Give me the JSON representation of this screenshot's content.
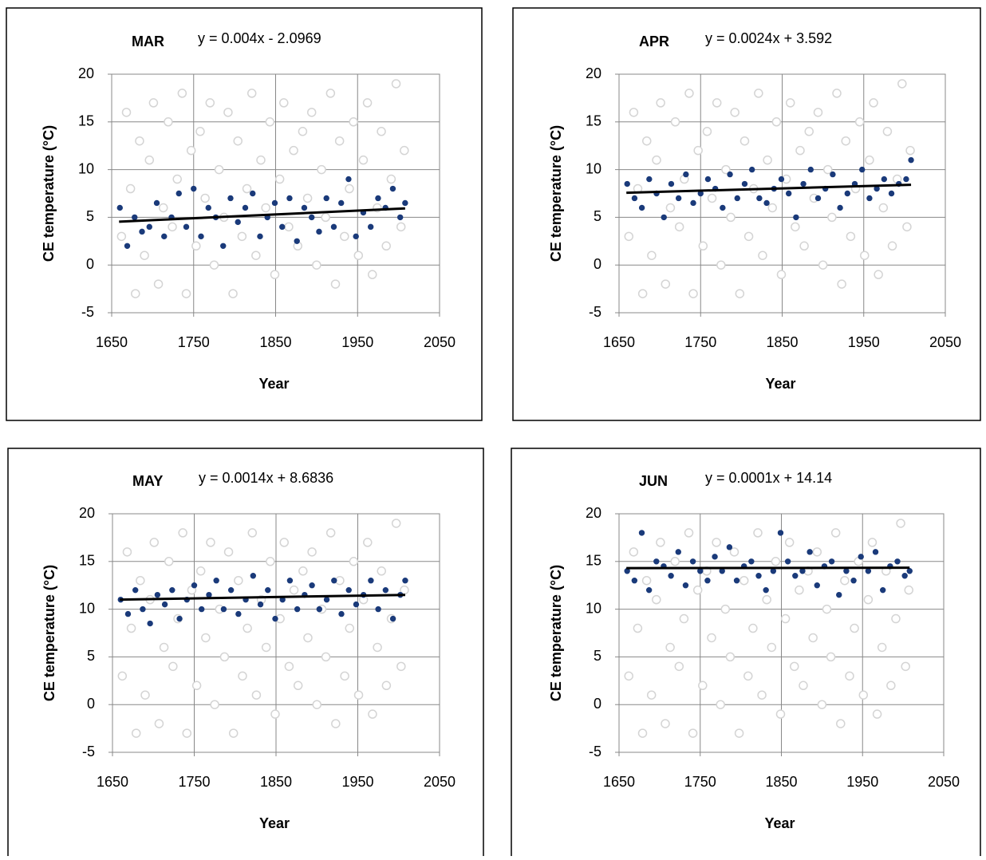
{
  "chart_data": [
    {
      "type": "scatter",
      "title": "MAR",
      "equation": "y = 0.004x - 2.0969",
      "xlabel": "Year",
      "ylabel": "CE temperature (°C)",
      "xlim": [
        1650,
        2050
      ],
      "ylim": [
        -5,
        20
      ],
      "xticks": [
        1650,
        1750,
        1850,
        1950,
        2050
      ],
      "yticks": [
        -5,
        0,
        5,
        10,
        15,
        20
      ],
      "grid": true,
      "series": [
        {
          "marker": "open",
          "color": "#d4d4d4",
          "x": [
            1662,
            1668,
            1673,
            1679,
            1684,
            1690,
            1696,
            1701,
            1707,
            1713,
            1719,
            1724,
            1730,
            1736,
            1741,
            1747,
            1753,
            1758,
            1764,
            1770,
            1775,
            1781,
            1787,
            1792,
            1798,
            1804,
            1809,
            1815,
            1821,
            1826,
            1832,
            1838,
            1843,
            1849,
            1855,
            1860,
            1866,
            1872,
            1877,
            1883,
            1889,
            1894,
            1900,
            1906,
            1911,
            1917,
            1923,
            1928,
            1934,
            1940,
            1945,
            1951,
            1957,
            1962,
            1968,
            1974,
            1979,
            1985,
            1991,
            1997,
            2003,
            2007
          ],
          "values": [
            3,
            16,
            8,
            -3,
            13,
            1,
            11,
            17,
            -2,
            6,
            15,
            4,
            9,
            18,
            -3,
            12,
            2,
            14,
            7,
            17,
            0,
            10,
            5,
            16,
            -3,
            13,
            3,
            8,
            18,
            1,
            11,
            6,
            15,
            -1,
            9,
            17,
            4,
            12,
            2,
            14,
            7,
            16,
            0,
            10,
            5,
            18,
            -2,
            13,
            3,
            8,
            15,
            1,
            11,
            17,
            -1,
            6,
            14,
            2,
            9,
            19,
            4,
            12
          ]
        },
        {
          "marker": "filled",
          "color": "#1a3a7a",
          "x": [
            1660,
            1669,
            1678,
            1687,
            1696,
            1705,
            1714,
            1723,
            1732,
            1741,
            1750,
            1759,
            1768,
            1777,
            1786,
            1795,
            1804,
            1813,
            1822,
            1831,
            1840,
            1849,
            1858,
            1867,
            1876,
            1885,
            1894,
            1903,
            1912,
            1921,
            1930,
            1939,
            1948,
            1957,
            1966,
            1975,
            1984,
            1993,
            2002,
            2008
          ],
          "values": [
            6,
            2,
            5,
            3.5,
            4,
            6.5,
            3,
            5,
            7.5,
            4,
            8,
            3,
            6,
            5,
            2,
            7,
            4.5,
            6,
            7.5,
            3,
            5,
            6.5,
            4,
            7,
            2.5,
            6,
            5,
            3.5,
            7,
            4,
            6.5,
            9,
            3,
            5.5,
            4,
            7,
            6,
            8,
            5,
            6.5
          ]
        },
        {
          "type": "line",
          "color": "#000000",
          "x": [
            1659,
            2008
          ],
          "values": [
            4.539,
            5.935
          ]
        }
      ]
    },
    {
      "type": "scatter",
      "title": "APR",
      "equation": "y = 0.0024x + 3.592",
      "xlabel": "Year",
      "ylabel": "CE temperature (°C)",
      "xlim": [
        1650,
        2050
      ],
      "ylim": [
        -5,
        20
      ],
      "xticks": [
        1650,
        1750,
        1850,
        1950,
        2050
      ],
      "yticks": [
        -5,
        0,
        5,
        10,
        15,
        20
      ],
      "grid": true,
      "series": [
        {
          "marker": "open",
          "color": "#d4d4d4",
          "x": [
            1662,
            1668,
            1673,
            1679,
            1684,
            1690,
            1696,
            1701,
            1707,
            1713,
            1719,
            1724,
            1730,
            1736,
            1741,
            1747,
            1753,
            1758,
            1764,
            1770,
            1775,
            1781,
            1787,
            1792,
            1798,
            1804,
            1809,
            1815,
            1821,
            1826,
            1832,
            1838,
            1843,
            1849,
            1855,
            1860,
            1866,
            1872,
            1877,
            1883,
            1889,
            1894,
            1900,
            1906,
            1911,
            1917,
            1923,
            1928,
            1934,
            1940,
            1945,
            1951,
            1957,
            1962,
            1968,
            1974,
            1979,
            1985,
            1991,
            1997,
            2003,
            2007
          ],
          "values": [
            3,
            16,
            8,
            -3,
            13,
            1,
            11,
            17,
            -2,
            6,
            15,
            4,
            9,
            18,
            -3,
            12,
            2,
            14,
            7,
            17,
            0,
            10,
            5,
            16,
            -3,
            13,
            3,
            8,
            18,
            1,
            11,
            6,
            15,
            -1,
            9,
            17,
            4,
            12,
            2,
            14,
            7,
            16,
            0,
            10,
            5,
            18,
            -2,
            13,
            3,
            8,
            15,
            1,
            11,
            17,
            -1,
            6,
            14,
            2,
            9,
            19,
            4,
            12
          ]
        },
        {
          "marker": "filled",
          "color": "#1a3a7a",
          "x": [
            1660,
            1669,
            1678,
            1687,
            1696,
            1705,
            1714,
            1723,
            1732,
            1741,
            1750,
            1759,
            1768,
            1777,
            1786,
            1795,
            1804,
            1813,
            1822,
            1831,
            1840,
            1849,
            1858,
            1867,
            1876,
            1885,
            1894,
            1903,
            1912,
            1921,
            1930,
            1939,
            1948,
            1957,
            1966,
            1975,
            1984,
            1993,
            2002,
            2008
          ],
          "values": [
            8.5,
            7,
            6,
            9,
            7.5,
            5,
            8.5,
            7,
            9.5,
            6.5,
            7.5,
            9,
            8,
            6,
            9.5,
            7,
            8.5,
            10,
            7,
            6.5,
            8,
            9,
            7.5,
            5,
            8.5,
            10,
            7,
            8,
            9.5,
            6,
            7.5,
            8.5,
            10,
            7,
            8,
            9,
            7.5,
            8.5,
            9,
            11
          ]
        },
        {
          "type": "line",
          "color": "#000000",
          "x": [
            1659,
            2008
          ],
          "values": [
            7.574,
            8.411
          ]
        }
      ]
    },
    {
      "type": "scatter",
      "title": "MAY",
      "equation": "y = 0.0014x + 8.6836",
      "xlabel": "Year",
      "ylabel": "CE temperature (°C)",
      "xlim": [
        1650,
        2050
      ],
      "ylim": [
        -5,
        20
      ],
      "xticks": [
        1650,
        1750,
        1850,
        1950,
        2050
      ],
      "yticks": [
        -5,
        0,
        5,
        10,
        15,
        20
      ],
      "grid": true,
      "series": [
        {
          "marker": "open",
          "color": "#d4d4d4",
          "x": [
            1662,
            1668,
            1673,
            1679,
            1684,
            1690,
            1696,
            1701,
            1707,
            1713,
            1719,
            1724,
            1730,
            1736,
            1741,
            1747,
            1753,
            1758,
            1764,
            1770,
            1775,
            1781,
            1787,
            1792,
            1798,
            1804,
            1809,
            1815,
            1821,
            1826,
            1832,
            1838,
            1843,
            1849,
            1855,
            1860,
            1866,
            1872,
            1877,
            1883,
            1889,
            1894,
            1900,
            1906,
            1911,
            1917,
            1923,
            1928,
            1934,
            1940,
            1945,
            1951,
            1957,
            1962,
            1968,
            1974,
            1979,
            1985,
            1991,
            1997,
            2003,
            2007
          ],
          "values": [
            3,
            16,
            8,
            -3,
            13,
            1,
            11,
            17,
            -2,
            6,
            15,
            4,
            9,
            18,
            -3,
            12,
            2,
            14,
            7,
            17,
            0,
            10,
            5,
            16,
            -3,
            13,
            3,
            8,
            18,
            1,
            11,
            6,
            15,
            -1,
            9,
            17,
            4,
            12,
            2,
            14,
            7,
            16,
            0,
            10,
            5,
            18,
            -2,
            13,
            3,
            8,
            15,
            1,
            11,
            17,
            -1,
            6,
            14,
            2,
            9,
            19,
            4,
            12
          ]
        },
        {
          "marker": "filled",
          "color": "#1a3a7a",
          "x": [
            1660,
            1669,
            1678,
            1687,
            1696,
            1705,
            1714,
            1723,
            1732,
            1741,
            1750,
            1759,
            1768,
            1777,
            1786,
            1795,
            1804,
            1813,
            1822,
            1831,
            1840,
            1849,
            1858,
            1867,
            1876,
            1885,
            1894,
            1903,
            1912,
            1921,
            1930,
            1939,
            1948,
            1957,
            1966,
            1975,
            1984,
            1993,
            2002,
            2008
          ],
          "values": [
            11,
            9.5,
            12,
            10,
            8.5,
            11.5,
            10.5,
            12,
            9,
            11,
            12.5,
            10,
            11.5,
            13,
            10,
            12,
            9.5,
            11,
            13.5,
            10.5,
            12,
            9,
            11,
            13,
            10,
            11.5,
            12.5,
            10,
            11,
            13,
            9.5,
            12,
            10.5,
            11.5,
            13,
            10,
            12,
            9,
            11.5,
            13
          ]
        },
        {
          "type": "line",
          "color": "#000000",
          "x": [
            1659,
            2008
          ],
          "values": [
            11.006,
            11.495
          ]
        }
      ]
    },
    {
      "type": "scatter",
      "title": "JUN",
      "equation": "y = 0.0001x + 14.14",
      "xlabel": "Year",
      "ylabel": "CE temperature (°C)",
      "xlim": [
        1650,
        2050
      ],
      "ylim": [
        -5,
        20
      ],
      "xticks": [
        1650,
        1750,
        1850,
        1950,
        2050
      ],
      "yticks": [
        -5,
        0,
        5,
        10,
        15,
        20
      ],
      "grid": true,
      "series": [
        {
          "marker": "open",
          "color": "#d4d4d4",
          "x": [
            1662,
            1668,
            1673,
            1679,
            1684,
            1690,
            1696,
            1701,
            1707,
            1713,
            1719,
            1724,
            1730,
            1736,
            1741,
            1747,
            1753,
            1758,
            1764,
            1770,
            1775,
            1781,
            1787,
            1792,
            1798,
            1804,
            1809,
            1815,
            1821,
            1826,
            1832,
            1838,
            1843,
            1849,
            1855,
            1860,
            1866,
            1872,
            1877,
            1883,
            1889,
            1894,
            1900,
            1906,
            1911,
            1917,
            1923,
            1928,
            1934,
            1940,
            1945,
            1951,
            1957,
            1962,
            1968,
            1974,
            1979,
            1985,
            1991,
            1997,
            2003,
            2007
          ],
          "values": [
            3,
            16,
            8,
            -3,
            13,
            1,
            11,
            17,
            -2,
            6,
            15,
            4,
            9,
            18,
            -3,
            12,
            2,
            14,
            7,
            17,
            0,
            10,
            5,
            16,
            -3,
            13,
            3,
            8,
            18,
            1,
            11,
            6,
            15,
            -1,
            9,
            17,
            4,
            12,
            2,
            14,
            7,
            16,
            0,
            10,
            5,
            18,
            -2,
            13,
            3,
            8,
            15,
            1,
            11,
            17,
            -1,
            6,
            14,
            2,
            9,
            19,
            4,
            12
          ]
        },
        {
          "marker": "filled",
          "color": "#1a3a7a",
          "x": [
            1660,
            1669,
            1678,
            1687,
            1696,
            1705,
            1714,
            1723,
            1732,
            1741,
            1750,
            1759,
            1768,
            1777,
            1786,
            1795,
            1804,
            1813,
            1822,
            1831,
            1840,
            1849,
            1858,
            1867,
            1876,
            1885,
            1894,
            1903,
            1912,
            1921,
            1930,
            1939,
            1948,
            1957,
            1966,
            1975,
            1984,
            1993,
            2002,
            2008
          ],
          "values": [
            14,
            13,
            18,
            12,
            15,
            14.5,
            13.5,
            16,
            12.5,
            15,
            14,
            13,
            15.5,
            14,
            16.5,
            13,
            14.5,
            15,
            13.5,
            12,
            14,
            18,
            15,
            13.5,
            14,
            16,
            12.5,
            14.5,
            15,
            11.5,
            14,
            13,
            15.5,
            14,
            16,
            12,
            14.5,
            15,
            13.5,
            14
          ]
        },
        {
          "type": "line",
          "color": "#000000",
          "x": [
            1659,
            2008
          ],
          "values": [
            14.306,
            14.341
          ]
        }
      ]
    }
  ]
}
